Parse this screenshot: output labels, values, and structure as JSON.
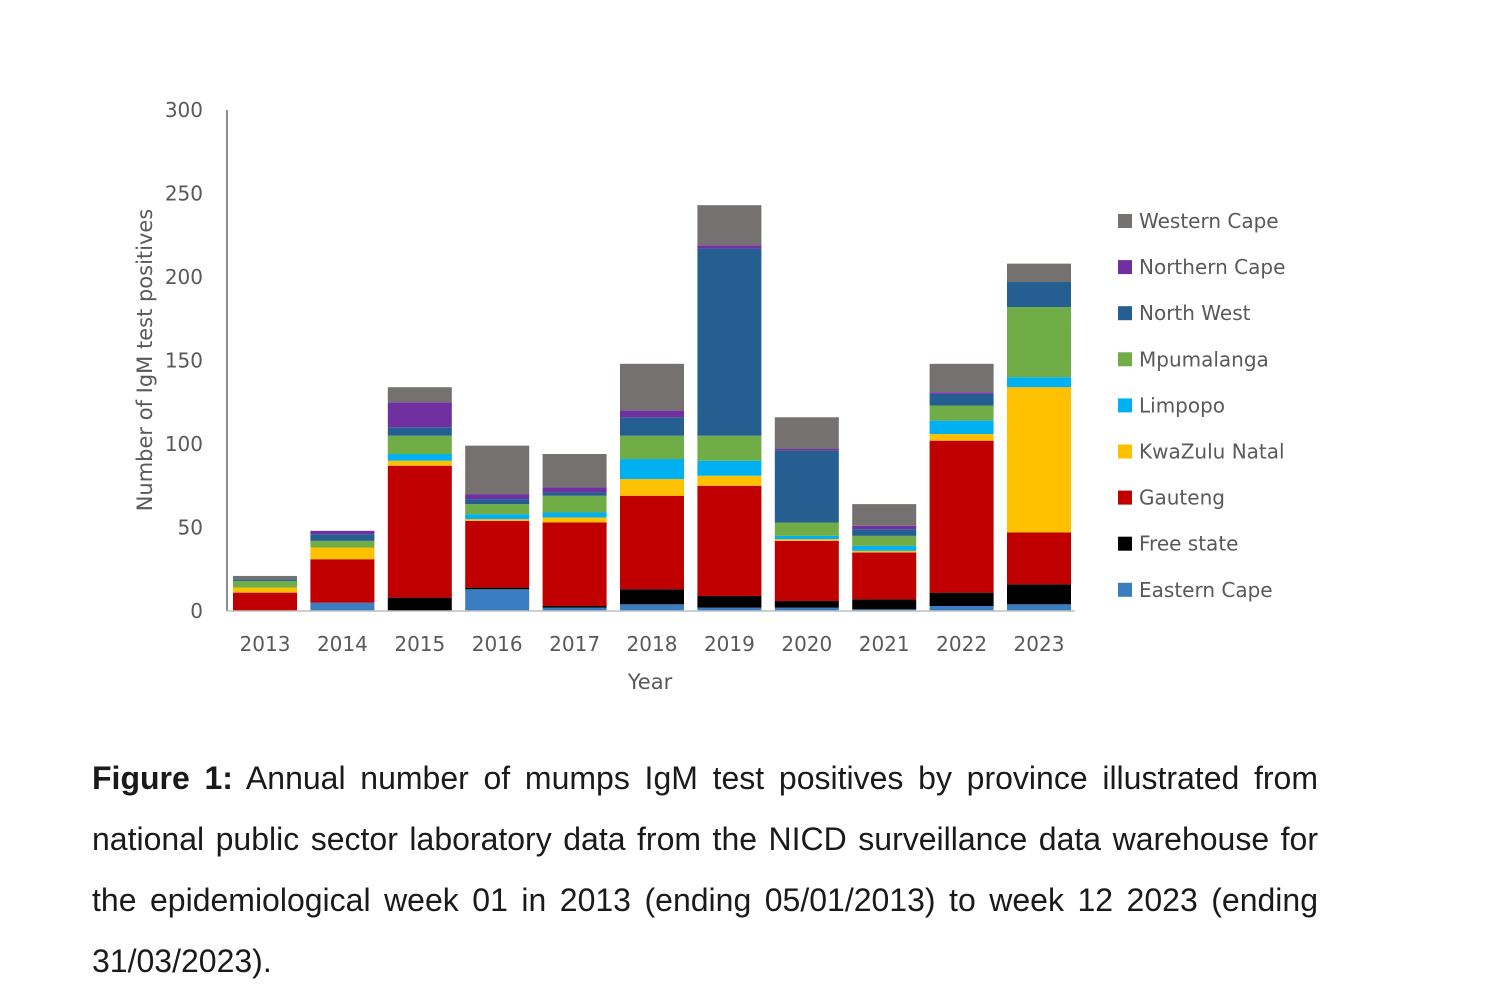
{
  "chart_data": {
    "type": "bar",
    "stacked": true,
    "categories": [
      "2013",
      "2014",
      "2015",
      "2016",
      "2017",
      "2018",
      "2019",
      "2020",
      "2021",
      "2022",
      "2023"
    ],
    "ylabel": "Number of IgM test positives",
    "xlabel": "Year",
    "ylim": [
      0,
      300
    ],
    "yticks": [
      0,
      50,
      100,
      150,
      200,
      250,
      300
    ],
    "grid": false,
    "legend_position": "right",
    "series": [
      {
        "name": "Eastern Cape",
        "color": "#3A7DC0",
        "values": [
          0,
          5,
          0,
          13,
          2,
          4,
          2,
          2,
          1,
          3,
          4
        ]
      },
      {
        "name": "Free state",
        "color": "#000000",
        "values": [
          0,
          0,
          8,
          1,
          1,
          9,
          7,
          4,
          6,
          8,
          12
        ]
      },
      {
        "name": "Gauteng",
        "color": "#C00000",
        "values": [
          11,
          26,
          79,
          40,
          50,
          56,
          66,
          36,
          28,
          91,
          31
        ]
      },
      {
        "name": "KwaZulu Natal",
        "color": "#FFC000",
        "values": [
          3,
          7,
          3,
          1,
          3,
          10,
          6,
          1,
          1,
          4,
          87
        ]
      },
      {
        "name": "Limpopo",
        "color": "#00B0F0",
        "values": [
          0,
          0,
          4,
          3,
          3,
          12,
          9,
          2,
          3,
          8,
          6
        ]
      },
      {
        "name": "Mpumalanga",
        "color": "#70AD47",
        "values": [
          4,
          4,
          11,
          6,
          10,
          14,
          15,
          8,
          6,
          9,
          42
        ]
      },
      {
        "name": "North West",
        "color": "#255E91",
        "values": [
          1,
          4,
          5,
          3,
          2,
          11,
          112,
          43,
          4,
          7,
          15
        ]
      },
      {
        "name": "Northern Cape",
        "color": "#7030A0",
        "values": [
          0,
          2,
          15,
          3,
          3,
          4,
          2,
          1,
          2,
          1,
          0
        ]
      },
      {
        "name": "Western Cape",
        "color": "#757171",
        "values": [
          2,
          0,
          9,
          29,
          20,
          28,
          24,
          19,
          13,
          17,
          11
        ]
      }
    ]
  },
  "caption": {
    "label": "Figure 1:",
    "text": " Annual number of mumps IgM test positives by province illustrated from national public sector laboratory data from the NICD surveillance data warehouse for the epidemiological week 01 in 2013 (ending 05/01/2013) to week 12 2023 (ending 31/03/2023)."
  }
}
